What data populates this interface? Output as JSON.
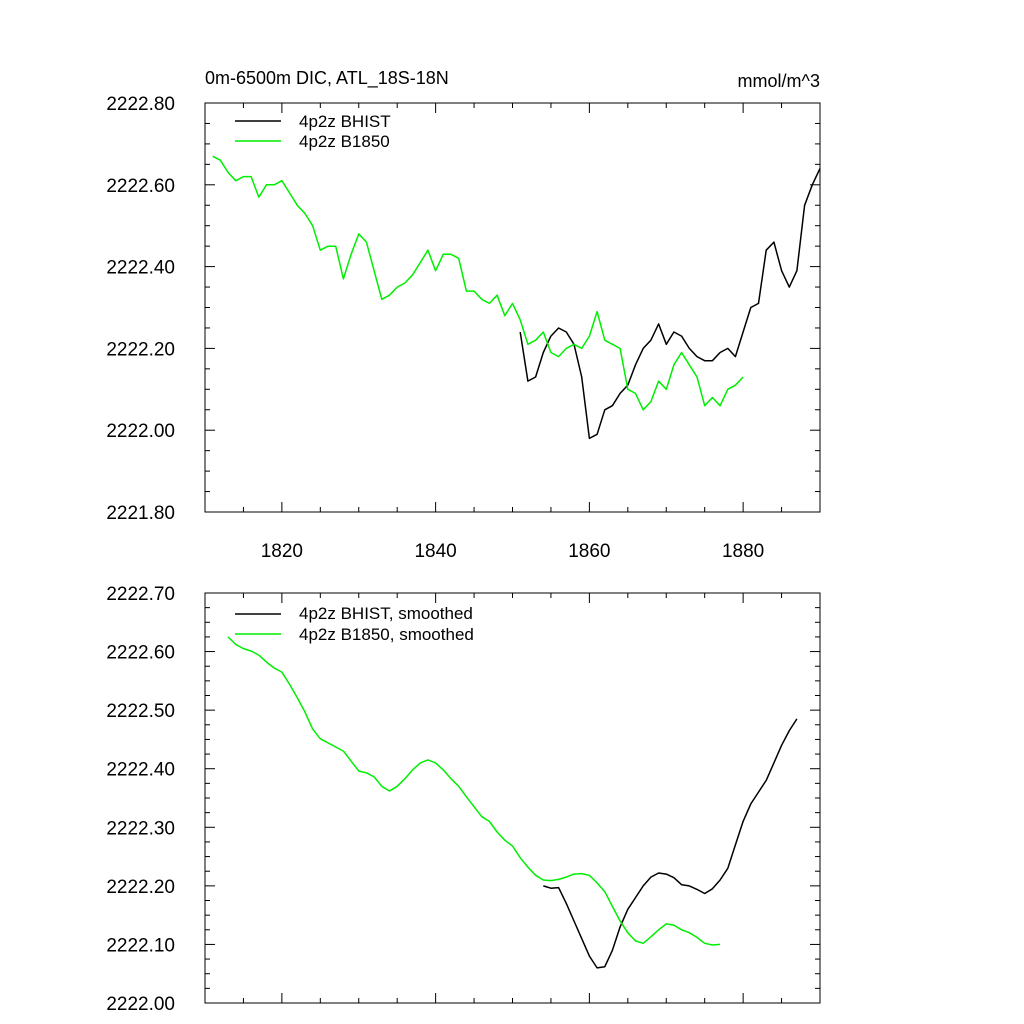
{
  "colors": {
    "bhist": "#000000",
    "b1850": "#00ee00",
    "axis": "#000000",
    "background": "#ffffff"
  },
  "chart_data": [
    {
      "type": "line",
      "title": "0m-6500m DIC, ATL_18S-18N",
      "units": "mmol/m^3",
      "xlim": [
        1810,
        1890
      ],
      "ylim": [
        2221.8,
        2222.8
      ],
      "x_ticks": [
        1820,
        1840,
        1860,
        1880
      ],
      "x_tick_labels": [
        "1820",
        "1840",
        "1860",
        "1880"
      ],
      "y_ticks": [
        2221.8,
        2222.0,
        2222.2,
        2222.4,
        2222.6,
        2222.8
      ],
      "y_tick_labels": [
        "2221.80",
        "2222.00",
        "2222.20",
        "2222.40",
        "2222.60",
        "2222.80"
      ],
      "legend_position": "top-left",
      "series": [
        {
          "name": "4p2z BHIST",
          "color": "#000000",
          "x": [
            1851,
            1852,
            1853,
            1854,
            1855,
            1856,
            1857,
            1858,
            1859,
            1860,
            1861,
            1862,
            1863,
            1864,
            1865,
            1866,
            1867,
            1868,
            1869,
            1870,
            1871,
            1872,
            1873,
            1874,
            1875,
            1876,
            1877,
            1878,
            1879,
            1880,
            1881,
            1882,
            1883,
            1884,
            1885,
            1886,
            1887,
            1888,
            1889,
            1890
          ],
          "y": [
            2222.24,
            2222.12,
            2222.13,
            2222.19,
            2222.23,
            2222.25,
            2222.24,
            2222.21,
            2222.13,
            2221.98,
            2221.99,
            2222.05,
            2222.06,
            2222.09,
            2222.11,
            2222.16,
            2222.2,
            2222.22,
            2222.26,
            2222.21,
            2222.24,
            2222.23,
            2222.2,
            2222.18,
            2222.17,
            2222.17,
            2222.19,
            2222.2,
            2222.18,
            2222.24,
            2222.3,
            2222.31,
            2222.44,
            2222.46,
            2222.39,
            2222.35,
            2222.39,
            2222.55,
            2222.6,
            2222.64
          ]
        },
        {
          "name": "4p2z B1850",
          "color": "#00ee00",
          "x": [
            1811,
            1812,
            1813,
            1814,
            1815,
            1816,
            1817,
            1818,
            1819,
            1820,
            1821,
            1822,
            1823,
            1824,
            1825,
            1826,
            1827,
            1828,
            1829,
            1830,
            1831,
            1832,
            1833,
            1834,
            1835,
            1836,
            1837,
            1838,
            1839,
            1840,
            1841,
            1842,
            1843,
            1844,
            1845,
            1846,
            1847,
            1848,
            1849,
            1850,
            1851,
            1852,
            1853,
            1854,
            1855,
            1856,
            1857,
            1858,
            1859,
            1860,
            1861,
            1862,
            1863,
            1864,
            1865,
            1866,
            1867,
            1868,
            1869,
            1870,
            1871,
            1872,
            1873,
            1874,
            1875,
            1876,
            1877,
            1878,
            1879,
            1880
          ],
          "y": [
            2222.67,
            2222.66,
            2222.63,
            2222.61,
            2222.62,
            2222.62,
            2222.57,
            2222.6,
            2222.6,
            2222.61,
            2222.58,
            2222.55,
            2222.53,
            2222.5,
            2222.44,
            2222.45,
            2222.45,
            2222.37,
            2222.43,
            2222.48,
            2222.46,
            2222.39,
            2222.32,
            2222.33,
            2222.35,
            2222.36,
            2222.38,
            2222.41,
            2222.44,
            2222.39,
            2222.43,
            2222.43,
            2222.42,
            2222.34,
            2222.34,
            2222.32,
            2222.31,
            2222.33,
            2222.28,
            2222.31,
            2222.27,
            2222.21,
            2222.22,
            2222.24,
            2222.19,
            2222.18,
            2222.2,
            2222.21,
            2222.2,
            2222.23,
            2222.29,
            2222.22,
            2222.21,
            2222.2,
            2222.1,
            2222.09,
            2222.05,
            2222.07,
            2222.12,
            2222.1,
            2222.16,
            2222.19,
            2222.16,
            2222.13,
            2222.06,
            2222.08,
            2222.06,
            2222.1,
            2222.11,
            2222.13
          ]
        }
      ]
    },
    {
      "type": "line",
      "title": "",
      "units": "",
      "xlim": [
        1810,
        1890
      ],
      "ylim": [
        2222.0,
        2222.7
      ],
      "x_ticks": [
        1820,
        1840,
        1860,
        1880
      ],
      "x_tick_labels": [],
      "y_ticks": [
        2222.0,
        2222.1,
        2222.2,
        2222.3,
        2222.4,
        2222.5,
        2222.6,
        2222.7
      ],
      "y_tick_labels": [
        "2222.00",
        "2222.10",
        "2222.20",
        "2222.30",
        "2222.40",
        "2222.50",
        "2222.60",
        "2222.70"
      ],
      "legend_position": "top-left",
      "series": [
        {
          "name": "4p2z BHIST, smoothed",
          "color": "#000000",
          "x": [
            1854,
            1855,
            1856,
            1857,
            1858,
            1859,
            1860,
            1861,
            1862,
            1863,
            1864,
            1865,
            1866,
            1867,
            1868,
            1869,
            1870,
            1871,
            1872,
            1873,
            1874,
            1875,
            1876,
            1877,
            1878,
            1879,
            1880,
            1881,
            1882,
            1883,
            1884,
            1885,
            1886,
            1887
          ],
          "y": [
            2222.2,
            2222.196,
            2222.197,
            2222.17,
            2222.14,
            2222.11,
            2222.08,
            2222.06,
            2222.062,
            2222.09,
            2222.13,
            2222.16,
            2222.18,
            2222.2,
            2222.215,
            2222.222,
            2222.22,
            2222.214,
            2222.202,
            2222.2,
            2222.194,
            2222.187,
            2222.195,
            2222.21,
            2222.23,
            2222.27,
            2222.31,
            2222.34,
            2222.36,
            2222.38,
            2222.41,
            2222.44,
            2222.465,
            2222.485
          ]
        },
        {
          "name": "4p2z B1850, smoothed",
          "color": "#00ee00",
          "x": [
            1813,
            1814,
            1815,
            1816,
            1817,
            1818,
            1819,
            1820,
            1821,
            1822,
            1823,
            1824,
            1825,
            1826,
            1827,
            1828,
            1829,
            1830,
            1831,
            1832,
            1833,
            1834,
            1835,
            1836,
            1837,
            1838,
            1839,
            1840,
            1841,
            1842,
            1843,
            1844,
            1845,
            1846,
            1847,
            1848,
            1849,
            1850,
            1851,
            1852,
            1853,
            1854,
            1855,
            1856,
            1857,
            1858,
            1859,
            1860,
            1861,
            1862,
            1863,
            1864,
            1865,
            1866,
            1867,
            1868,
            1869,
            1870,
            1871,
            1872,
            1873,
            1874,
            1875,
            1876,
            1877
          ],
          "y": [
            2222.625,
            2222.612,
            2222.605,
            2222.601,
            2222.594,
            2222.582,
            2222.572,
            2222.565,
            2222.544,
            2222.521,
            2222.497,
            2222.468,
            2222.451,
            2222.444,
            2222.437,
            2222.43,
            2222.413,
            2222.396,
            2222.393,
            2222.386,
            2222.37,
            2222.362,
            2222.37,
            2222.383,
            2222.398,
            2222.41,
            2222.415,
            2222.41,
            2222.398,
            2222.383,
            2222.37,
            2222.352,
            2222.335,
            2222.318,
            2222.31,
            2222.292,
            2222.278,
            2222.268,
            2222.248,
            2222.232,
            2222.218,
            2222.21,
            2222.209,
            2222.211,
            2222.215,
            2222.22,
            2222.221,
            2222.218,
            2222.205,
            2222.19,
            2222.165,
            2222.14,
            2222.12,
            2222.106,
            2222.102,
            2222.113,
            2222.125,
            2222.135,
            2222.133,
            2222.125,
            2222.12,
            2222.112,
            2222.102,
            2222.099,
            2222.1
          ]
        }
      ]
    }
  ]
}
